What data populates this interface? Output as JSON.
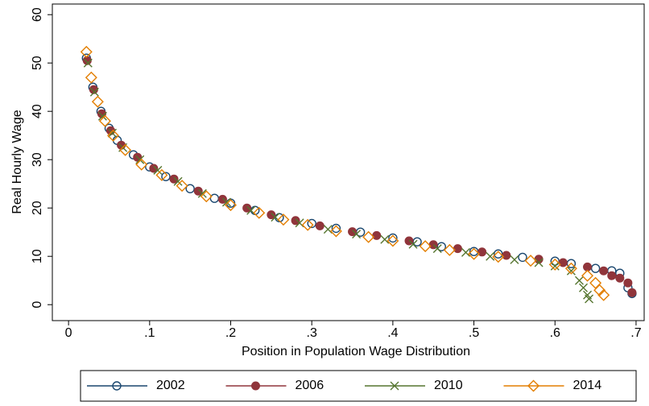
{
  "chart_data": {
    "type": "scatter",
    "x_label": "Position in Population Wage Distribution",
    "y_label": "Real Hourly Wage",
    "xlim": [
      -0.02,
      0.71
    ],
    "ylim": [
      -3.3,
      62.2
    ],
    "xticks": [
      0,
      {
        "value": 0.1,
        "label": ".1"
      },
      {
        "value": 0.2,
        "label": ".2"
      },
      {
        "value": 0.3,
        "label": ".3"
      },
      {
        "value": 0.4,
        "label": ".4"
      },
      {
        "value": 0.5,
        "label": ".5"
      },
      {
        "value": 0.6,
        "label": ".6"
      },
      {
        "value": 0.7,
        "label": ".7"
      }
    ],
    "yticks": [
      0,
      10,
      20,
      30,
      40,
      50,
      60
    ],
    "grid": false,
    "legend": "bottom",
    "series": [
      {
        "name": "2002",
        "color": "#1a476f",
        "marker": "circle-hollow",
        "x": [
          0.022,
          0.03,
          0.04,
          0.05,
          0.06,
          0.08,
          0.1,
          0.12,
          0.15,
          0.18,
          0.2,
          0.23,
          0.26,
          0.3,
          0.33,
          0.36,
          0.4,
          0.43,
          0.46,
          0.5,
          0.53,
          0.56,
          0.6,
          0.62,
          0.65,
          0.67,
          0.68,
          0.69,
          0.695
        ],
        "values": [
          51,
          45,
          40,
          36.5,
          34,
          31,
          28.5,
          26.5,
          24,
          22,
          21,
          19.5,
          18,
          16.8,
          15.8,
          15,
          13.8,
          13,
          12,
          11,
          10.5,
          9.8,
          9,
          8.5,
          7.5,
          7,
          6.5,
          3.5,
          2.3
        ]
      },
      {
        "name": "2006",
        "color": "#90353b",
        "marker": "circle-filled",
        "x": [
          0.023,
          0.031,
          0.041,
          0.052,
          0.065,
          0.085,
          0.105,
          0.13,
          0.16,
          0.19,
          0.22,
          0.25,
          0.28,
          0.31,
          0.35,
          0.38,
          0.42,
          0.45,
          0.48,
          0.51,
          0.54,
          0.58,
          0.61,
          0.64,
          0.66,
          0.67,
          0.68,
          0.69,
          0.695
        ],
        "values": [
          50.5,
          44.5,
          39.5,
          36,
          33,
          30.5,
          28.2,
          26,
          23.5,
          21.8,
          20,
          18.6,
          17.4,
          16.3,
          15.1,
          14.3,
          13.2,
          12.4,
          11.6,
          10.9,
          10.2,
          9.4,
          8.7,
          7.8,
          7,
          6,
          5.5,
          4.5,
          2.5
        ]
      },
      {
        "name": "2010",
        "color": "#55752f",
        "marker": "x",
        "x": [
          0.024,
          0.032,
          0.042,
          0.054,
          0.067,
          0.088,
          0.11,
          0.135,
          0.165,
          0.195,
          0.225,
          0.255,
          0.285,
          0.32,
          0.355,
          0.39,
          0.425,
          0.455,
          0.49,
          0.52,
          0.55,
          0.58,
          0.6,
          0.62,
          0.63,
          0.635,
          0.64,
          0.642
        ],
        "values": [
          50,
          44,
          39,
          35.5,
          32.5,
          30,
          27.8,
          25.5,
          23,
          21.2,
          19.5,
          18.1,
          16.9,
          15.6,
          14.6,
          13.5,
          12.5,
          11.6,
          10.8,
          10,
          9.3,
          8.7,
          8,
          7,
          5,
          3.5,
          2,
          1.2
        ]
      },
      {
        "name": "2014",
        "color": "#e37e00",
        "marker": "diamond",
        "x": [
          0.022,
          0.028,
          0.036,
          0.045,
          0.055,
          0.07,
          0.09,
          0.115,
          0.14,
          0.17,
          0.2,
          0.235,
          0.265,
          0.295,
          0.33,
          0.37,
          0.4,
          0.44,
          0.47,
          0.5,
          0.53,
          0.57,
          0.6,
          0.62,
          0.64,
          0.65,
          0.655,
          0.66
        ],
        "values": [
          52.3,
          47,
          42,
          38,
          35,
          32,
          29,
          26.8,
          24.6,
          22.4,
          20.6,
          19,
          17.6,
          16.5,
          15.2,
          14,
          13.2,
          12.1,
          11.3,
          10.5,
          9.9,
          9.1,
          8.3,
          7.5,
          6,
          4.5,
          3,
          2
        ]
      }
    ]
  }
}
